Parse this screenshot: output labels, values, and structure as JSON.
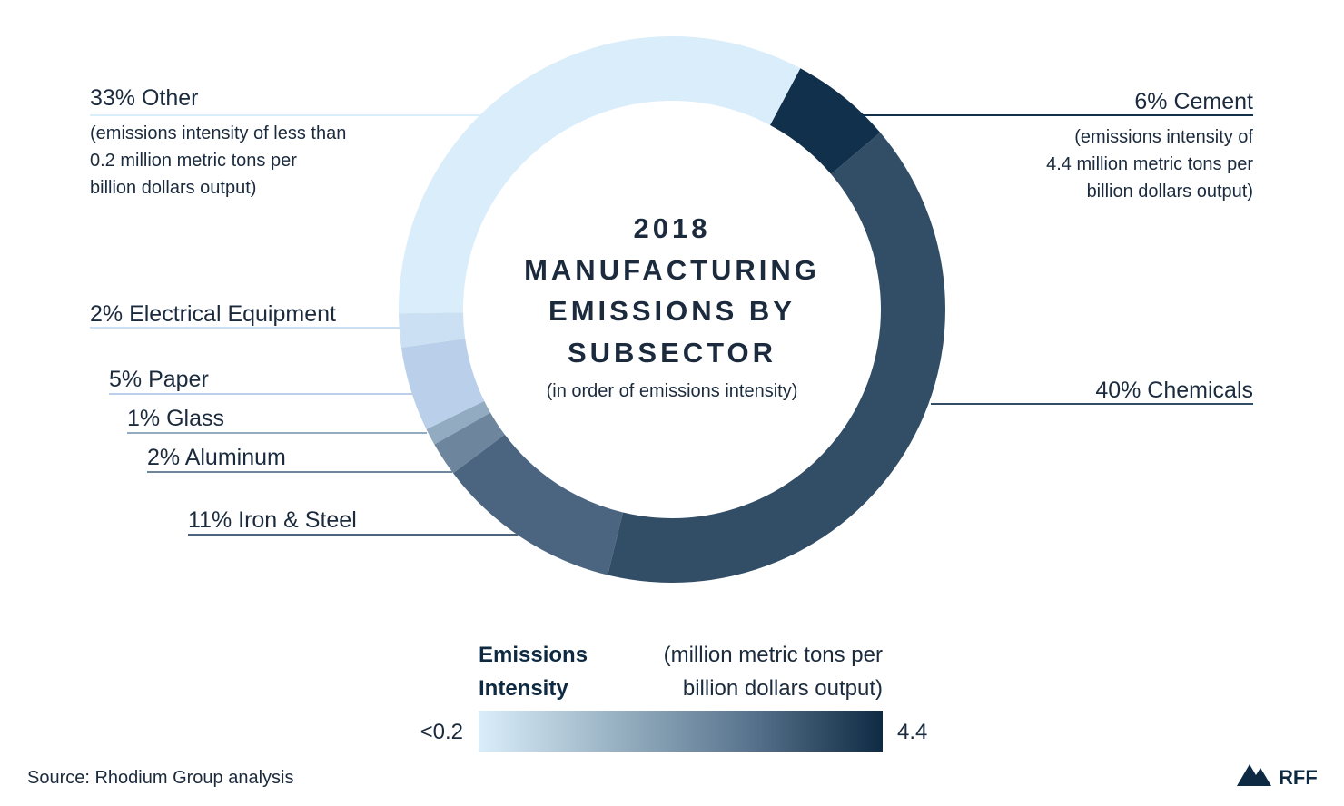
{
  "chart_data": {
    "type": "pie",
    "title_lines": [
      "2018",
      "MANUFACTURING",
      "EMISSIONS BY",
      "SUBSECTOR"
    ],
    "subtitle": "(in order of emissions intensity)",
    "slices": [
      {
        "label": "6% Cement",
        "value": 6,
        "color": "#11304b",
        "note": [
          "(emissions intensity of",
          "4.4 million metric tons per",
          "billion dollars output)"
        ]
      },
      {
        "label": "40% Chemicals",
        "value": 40,
        "color": "#324d66",
        "note": []
      },
      {
        "label": "11% Iron & Steel",
        "value": 11,
        "color": "#4b6580",
        "note": []
      },
      {
        "label": "2% Aluminum",
        "value": 2,
        "color": "#6d869e",
        "note": []
      },
      {
        "label": "1% Glass",
        "value": 1,
        "color": "#92abc1",
        "note": []
      },
      {
        "label": "5% Paper",
        "value": 5,
        "color": "#bad0ea",
        "note": []
      },
      {
        "label": "2% Electrical Equipment",
        "value": 2,
        "color": "#cbe1f3",
        "note": []
      },
      {
        "label": "33% Other",
        "value": 33,
        "color": "#daedfa",
        "note": [
          "(emissions intensity of less than",
          "0.2 million metric tons per",
          "billion dollars output)"
        ]
      }
    ],
    "legend": {
      "title_lines": [
        "Emissions",
        "Intensity"
      ],
      "unit_lines": [
        "(million metric tons per",
        "billion dollars output)"
      ],
      "min_label": "<0.2",
      "max_label": "4.4",
      "gradient": [
        "#daedfa",
        "#9ab3c4",
        "#5b7690",
        "#0f2a43"
      ]
    }
  },
  "source": "Source: Rhodium Group analysis",
  "brand": "RFF"
}
